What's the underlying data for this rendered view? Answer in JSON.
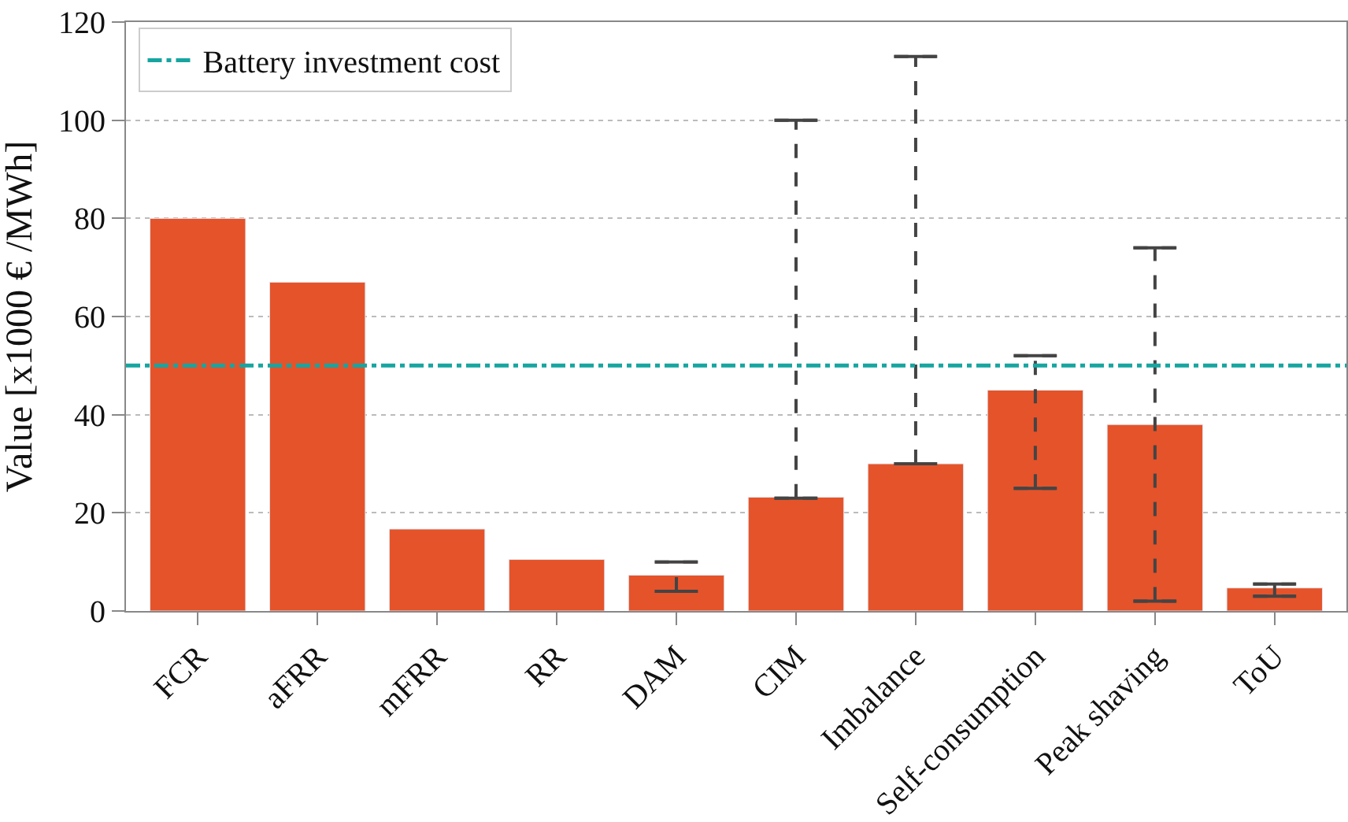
{
  "chart_data": {
    "type": "bar",
    "ylabel": "Value [x1000 € /MWh]",
    "categories": [
      "FCR",
      "aFRR",
      "mFRR",
      "RR",
      "DAM",
      "CIM",
      "Imbalance",
      "Self-consumption",
      "Peak shaving",
      "ToU"
    ],
    "values": [
      80,
      67,
      16.7,
      10.5,
      7.3,
      23.2,
      30,
      45,
      38,
      4.7
    ],
    "color": "#e5532a",
    "errors": [
      null,
      null,
      null,
      null,
      [
        4,
        10
      ],
      [
        23,
        100
      ],
      [
        30,
        113
      ],
      [
        25,
        52
      ],
      [
        2,
        74
      ],
      [
        3,
        5.5
      ]
    ],
    "ylim": [
      0,
      120
    ],
    "yticks": [
      0,
      20,
      40,
      60,
      80,
      100,
      120
    ],
    "ref_lines": [
      {
        "axis": "y",
        "value": 50,
        "label": "Battery investment cost",
        "color": "#17a5a0",
        "line_style": "dashdot"
      }
    ],
    "grid": "y",
    "legend": "top left"
  }
}
